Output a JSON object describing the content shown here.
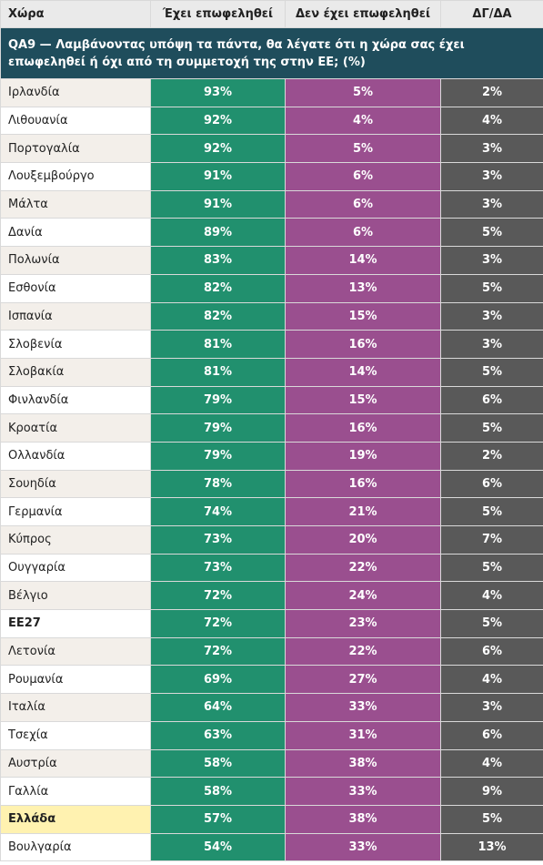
{
  "table": {
    "header": [
      "Χώρα",
      "Έχει επωφεληθεί",
      "Δεν έχει επωφεληθεί",
      "ΔΓ/ΔΑ"
    ],
    "title": "QA9 — Λαμβάνοντας υπόψη τα πάντα, θα λέγατε ότι η χώρα σας έχει επωφεληθεί ή όχι από τη συμμετοχή της στην ΕΕ; (%)",
    "rows": [
      [
        "Ιρλανδία",
        "93%",
        "5%",
        "2%"
      ],
      [
        "Λιθουανία",
        "92%",
        "4%",
        "4%"
      ],
      [
        "Πορτογαλία",
        "92%",
        "5%",
        "3%"
      ],
      [
        "Λουξεμβούργο",
        "91%",
        "6%",
        "3%"
      ],
      [
        "Μάλτα",
        "91%",
        "6%",
        "3%"
      ],
      [
        "Δανία",
        "89%",
        "6%",
        "5%"
      ],
      [
        "Πολωνία",
        "83%",
        "14%",
        "3%"
      ],
      [
        "Εσθονία",
        "82%",
        "13%",
        "5%"
      ],
      [
        "Ισπανία",
        "82%",
        "15%",
        "3%"
      ],
      [
        "Σλοβενία",
        "81%",
        "16%",
        "3%"
      ],
      [
        "Σλοβακία",
        "81%",
        "14%",
        "5%"
      ],
      [
        "Φινλανδία",
        "79%",
        "15%",
        "6%"
      ],
      [
        "Κροατία",
        "79%",
        "16%",
        "5%"
      ],
      [
        "Ολλανδία",
        "79%",
        "19%",
        "2%"
      ],
      [
        "Σουηδία",
        "78%",
        "16%",
        "6%"
      ],
      [
        "Γερμανία",
        "74%",
        "21%",
        "5%"
      ],
      [
        "Κύπρος",
        "73%",
        "20%",
        "7%"
      ],
      [
        "Ουγγαρία",
        "73%",
        "22%",
        "5%"
      ],
      [
        "Βέλγιο",
        "72%",
        "24%",
        "4%"
      ],
      [
        "ΕΕ27",
        "72%",
        "23%",
        "5%"
      ],
      [
        "Λετονία",
        "72%",
        "22%",
        "6%"
      ],
      [
        "Ρουμανία",
        "69%",
        "27%",
        "4%"
      ],
      [
        "Ιταλία",
        "64%",
        "33%",
        "3%"
      ],
      [
        "Τσεχία",
        "63%",
        "31%",
        "6%"
      ],
      [
        "Αυστρία",
        "58%",
        "38%",
        "4%"
      ],
      [
        "Γαλλία",
        "58%",
        "33%",
        "9%"
      ],
      [
        "Ελλάδα",
        "57%",
        "38%",
        "5%"
      ],
      [
        "Βουλγαρία",
        "54%",
        "33%",
        "13%"
      ]
    ]
  }
}
